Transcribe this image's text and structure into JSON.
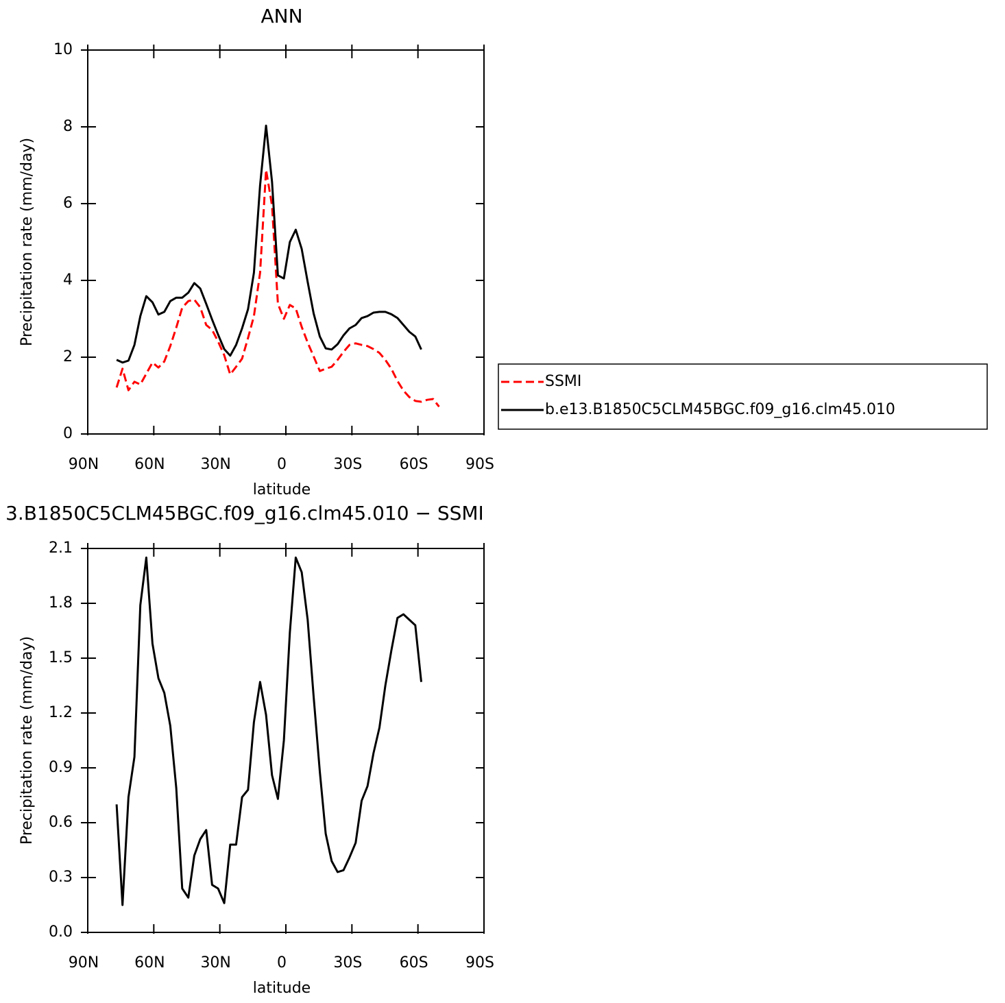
{
  "chart_data": [
    {
      "type": "line",
      "title": "ANN",
      "xlabel": "latitude",
      "ylabel": "Precipitation rate (mm/day)",
      "x": [
        76.9,
        74.2,
        71.5,
        68.8,
        66.1,
        63.4,
        60.6,
        57.9,
        55.2,
        52.5,
        49.8,
        47.1,
        44.3,
        41.6,
        38.9,
        36.2,
        33.5,
        30.8,
        28.0,
        25.3,
        22.6,
        19.9,
        17.2,
        14.5,
        11.7,
        9.0,
        6.3,
        3.6,
        0.9,
        -1.8,
        -4.5,
        -7.2,
        -9.9,
        -12.6,
        -15.4,
        -18.1,
        -20.8,
        -23.5,
        -26.2,
        -28.9,
        -31.7,
        -34.4,
        -37.1,
        -39.8,
        -42.5,
        -45.2,
        -47.9,
        -50.7,
        -53.4,
        -56.1,
        -58.8,
        -61.5,
        -64.2,
        -66.9,
        -69.6
      ],
      "series": [
        {
          "name": "SSMI",
          "color": "#ff0000",
          "line_style": "dashed",
          "values": [
            1.21,
            1.7,
            1.14,
            1.36,
            1.29,
            1.57,
            1.86,
            1.73,
            1.89,
            2.29,
            2.77,
            3.29,
            3.46,
            3.5,
            3.3,
            2.84,
            2.71,
            2.41,
            2.05,
            1.55,
            1.75,
            1.96,
            2.5,
            3.07,
            4.2,
            6.88,
            5.95,
            3.39,
            3.0,
            3.36,
            3.27,
            2.79,
            2.38,
            2.02,
            1.64,
            1.7,
            1.75,
            1.93,
            2.14,
            2.32,
            2.36,
            2.32,
            2.29,
            2.21,
            2.11,
            1.93,
            1.7,
            1.38,
            1.13,
            0.96,
            0.86,
            0.84,
            0.89,
            0.91,
            0.71
          ]
        },
        {
          "name": "b.e13.B1850C5CLM45BGC.f09_g16.clm45.010",
          "color": "#000000",
          "line_style": "solid",
          "values": [
            1.93,
            1.86,
            1.91,
            2.32,
            3.07,
            3.59,
            3.43,
            3.11,
            3.18,
            3.46,
            3.55,
            3.55,
            3.68,
            3.93,
            3.79,
            3.39,
            2.98,
            2.59,
            2.21,
            2.04,
            2.32,
            2.75,
            3.25,
            4.2,
            6.48,
            8.03,
            6.57,
            4.13,
            4.05,
            5.0,
            5.32,
            4.82,
            3.96,
            3.14,
            2.54,
            2.23,
            2.2,
            2.34,
            2.57,
            2.75,
            2.84,
            3.02,
            3.07,
            3.16,
            3.18,
            3.18,
            3.12,
            3.02,
            2.84,
            2.66,
            2.54,
            2.2,
            null,
            null,
            null
          ]
        }
      ],
      "xlim": [
        90,
        -90
      ],
      "xticks": [
        {
          "value": 90,
          "label": "90N"
        },
        {
          "value": 60,
          "label": "60N"
        },
        {
          "value": 30,
          "label": "30N"
        },
        0,
        {
          "value": -30,
          "label": "30S"
        },
        {
          "value": -60,
          "label": "60S"
        },
        {
          "value": -90,
          "label": "90S"
        }
      ],
      "ylim": [
        0,
        10
      ],
      "yticks": [
        0,
        2,
        4,
        6,
        8,
        10
      ],
      "legend": "right"
    },
    {
      "type": "line",
      "title": "3.B1850C5CLM45BGC.f09_g16.clm45.010 − SSMI",
      "xlabel": "latitude",
      "ylabel": "Precipitation rate (mm/day)",
      "x": [
        76.9,
        74.2,
        71.5,
        68.8,
        66.1,
        63.4,
        60.6,
        57.9,
        55.2,
        52.5,
        49.8,
        47.1,
        44.3,
        41.6,
        38.9,
        36.2,
        33.5,
        30.8,
        28.0,
        25.3,
        22.6,
        19.9,
        17.2,
        14.5,
        11.7,
        9.0,
        6.3,
        3.6,
        0.9,
        -1.8,
        -4.5,
        -7.2,
        -9.9,
        -12.6,
        -15.4,
        -18.1,
        -20.8,
        -23.5,
        -26.2,
        -28.9,
        -31.7,
        -34.4,
        -37.1,
        -39.8,
        -42.5,
        -45.2,
        -47.9,
        -50.7,
        -53.4,
        -56.1,
        -58.8,
        -61.5
      ],
      "series": [
        {
          "color": "#000000",
          "line_style": "solid",
          "values": [
            0.7,
            0.15,
            0.74,
            0.96,
            1.79,
            2.05,
            1.58,
            1.39,
            1.31,
            1.13,
            0.79,
            0.24,
            0.19,
            0.42,
            0.51,
            0.56,
            0.26,
            0.24,
            0.16,
            0.48,
            0.48,
            0.74,
            0.78,
            1.15,
            1.37,
            1.19,
            0.86,
            0.73,
            1.05,
            1.64,
            2.05,
            1.97,
            1.71,
            1.29,
            0.88,
            0.54,
            0.39,
            0.33,
            0.34,
            0.41,
            0.49,
            0.72,
            0.8,
            0.98,
            1.12,
            1.35,
            1.54,
            1.72,
            1.74,
            1.71,
            1.68,
            1.37
          ]
        }
      ],
      "xlim": [
        90,
        -90
      ],
      "xticks": [
        {
          "value": 90,
          "label": "90N"
        },
        {
          "value": 60,
          "label": "60N"
        },
        {
          "value": 30,
          "label": "30N"
        },
        0,
        {
          "value": -30,
          "label": "30S"
        },
        {
          "value": -60,
          "label": "60S"
        },
        {
          "value": -90,
          "label": "90S"
        }
      ],
      "ylim": [
        0,
        2.1
      ],
      "yticks": [
        {
          "value": 0,
          "label": "0.0"
        },
        0.3,
        0.6,
        0.9,
        1.2,
        1.5,
        1.8,
        2.1
      ]
    }
  ]
}
